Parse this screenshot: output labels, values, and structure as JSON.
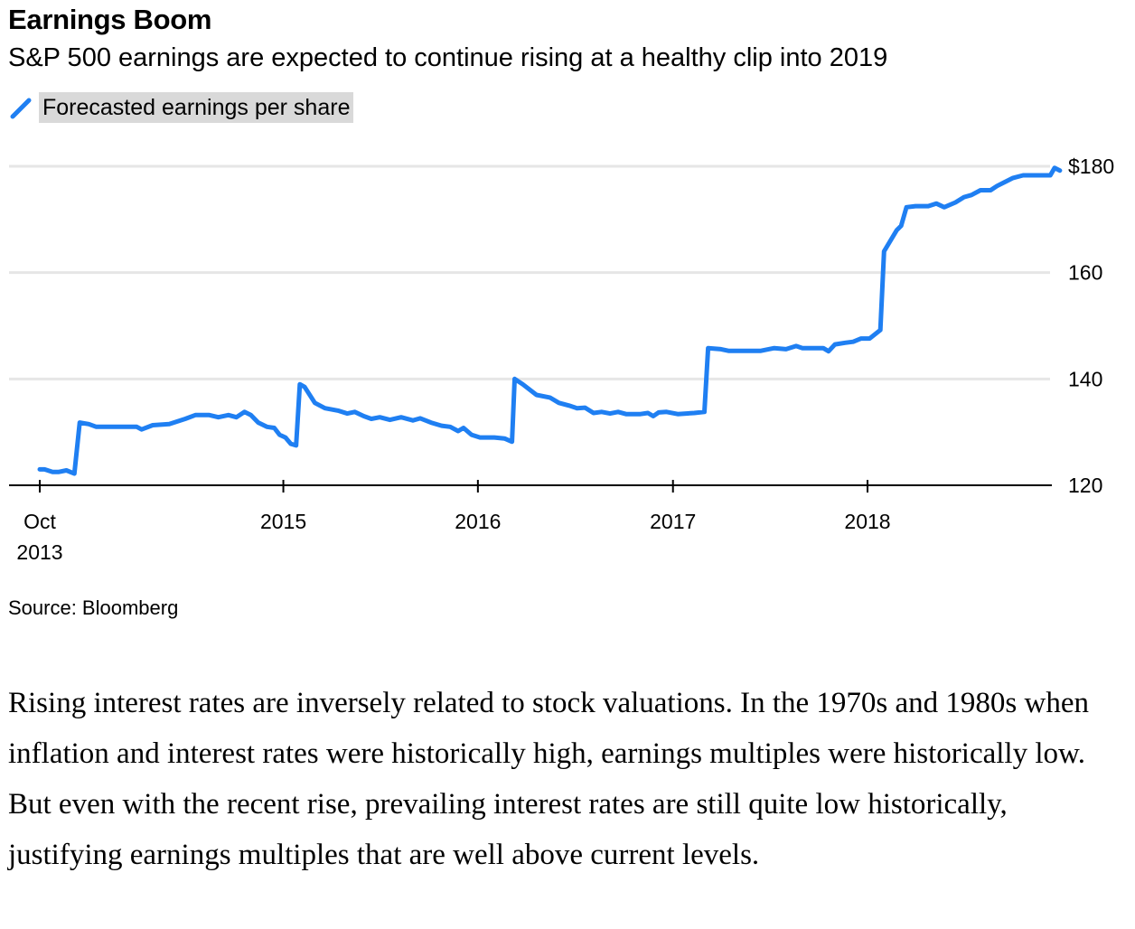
{
  "article": {
    "source": "Source: Bloomberg",
    "paragraph": "Rising interest rates are inversely related to stock valuations. In the 1970s and 1980s when inflation and interest rates were historically high, earnings multiples were historically low. But even with the recent rise, prevailing interest rates are still quite low historically, justifying earnings multiples that are well above current levels."
  },
  "colors": {
    "line": "#1f7ff2",
    "grid": "#e6e6e6",
    "legend_bg": "#d9d9d9"
  },
  "chart_data": {
    "type": "line",
    "title": "Earnings Boom",
    "subtitle": "S&P 500 earnings are expected to continue rising at a healthy clip into 2019",
    "legend_position": "top-left",
    "y_axis_position": "right",
    "grid": true,
    "ylim": [
      120,
      182
    ],
    "y_ticks": [
      {
        "value": 120,
        "label": "120"
      },
      {
        "value": 140,
        "label": "140"
      },
      {
        "value": 160,
        "label": "160"
      },
      {
        "value": 180,
        "label": "$180"
      }
    ],
    "x_ticks": [
      {
        "date": "2013-10-01",
        "label": [
          "Oct",
          "2013"
        ]
      },
      {
        "date": "2015-01-01",
        "label": [
          "2015"
        ]
      },
      {
        "date": "2016-01-01",
        "label": [
          "2016"
        ]
      },
      {
        "date": "2017-01-01",
        "label": [
          "2017"
        ]
      },
      {
        "date": "2018-01-01",
        "label": [
          "2018"
        ]
      }
    ],
    "xlim": [
      "2013-09-25",
      "2019-01-15"
    ],
    "series": [
      {
        "name": "Forecasted earnings per share",
        "points": [
          [
            "2013-10-01",
            123.0
          ],
          [
            "2013-10-10",
            123.0
          ],
          [
            "2013-10-25",
            122.5
          ],
          [
            "2013-11-05",
            122.5
          ],
          [
            "2013-11-20",
            122.8
          ],
          [
            "2013-12-05",
            122.2
          ],
          [
            "2013-12-15",
            131.8
          ],
          [
            "2014-01-01",
            131.5
          ],
          [
            "2014-01-15",
            131.0
          ],
          [
            "2014-02-01",
            131.0
          ],
          [
            "2014-03-01",
            131.0
          ],
          [
            "2014-04-01",
            131.0
          ],
          [
            "2014-04-10",
            130.5
          ],
          [
            "2014-05-01",
            131.3
          ],
          [
            "2014-06-01",
            131.5
          ],
          [
            "2014-07-01",
            132.5
          ],
          [
            "2014-07-20",
            133.2
          ],
          [
            "2014-08-15",
            133.2
          ],
          [
            "2014-09-01",
            132.8
          ],
          [
            "2014-09-20",
            133.2
          ],
          [
            "2014-10-05",
            132.8
          ],
          [
            "2014-10-20",
            133.8
          ],
          [
            "2014-11-01",
            133.2
          ],
          [
            "2014-11-15",
            131.8
          ],
          [
            "2014-12-01",
            131.0
          ],
          [
            "2014-12-15",
            130.8
          ],
          [
            "2014-12-25",
            129.5
          ],
          [
            "2015-01-05",
            129.0
          ],
          [
            "2015-01-15",
            127.8
          ],
          [
            "2015-01-25",
            127.5
          ],
          [
            "2015-02-01",
            139.0
          ],
          [
            "2015-02-10",
            138.5
          ],
          [
            "2015-03-01",
            135.5
          ],
          [
            "2015-03-20",
            134.5
          ],
          [
            "2015-04-15",
            134.0
          ],
          [
            "2015-05-01",
            133.5
          ],
          [
            "2015-05-15",
            133.8
          ],
          [
            "2015-06-01",
            133.0
          ],
          [
            "2015-06-15",
            132.5
          ],
          [
            "2015-07-01",
            132.8
          ],
          [
            "2015-07-20",
            132.3
          ],
          [
            "2015-08-10",
            132.8
          ],
          [
            "2015-09-01",
            132.2
          ],
          [
            "2015-09-15",
            132.6
          ],
          [
            "2015-10-05",
            131.8
          ],
          [
            "2015-10-25",
            131.2
          ],
          [
            "2015-11-10",
            131.0
          ],
          [
            "2015-11-25",
            130.2
          ],
          [
            "2015-12-05",
            130.8
          ],
          [
            "2015-12-20",
            129.5
          ],
          [
            "2016-01-05",
            129.0
          ],
          [
            "2016-02-01",
            129.0
          ],
          [
            "2016-02-20",
            128.8
          ],
          [
            "2016-03-05",
            128.2
          ],
          [
            "2016-03-10",
            140.0
          ],
          [
            "2016-03-25",
            139.0
          ],
          [
            "2016-04-20",
            137.0
          ],
          [
            "2016-05-15",
            136.5
          ],
          [
            "2016-06-01",
            135.5
          ],
          [
            "2016-06-20",
            135.0
          ],
          [
            "2016-07-05",
            134.5
          ],
          [
            "2016-07-20",
            134.6
          ],
          [
            "2016-08-05",
            133.6
          ],
          [
            "2016-08-20",
            133.8
          ],
          [
            "2016-09-05",
            133.5
          ],
          [
            "2016-09-20",
            133.8
          ],
          [
            "2016-10-05",
            133.4
          ],
          [
            "2016-11-01",
            133.4
          ],
          [
            "2016-11-15",
            133.6
          ],
          [
            "2016-11-25",
            133.0
          ],
          [
            "2016-12-05",
            133.7
          ],
          [
            "2016-12-20",
            133.8
          ],
          [
            "2017-01-10",
            133.4
          ],
          [
            "2017-02-10",
            133.6
          ],
          [
            "2017-03-01",
            133.8
          ],
          [
            "2017-03-08",
            145.8
          ],
          [
            "2017-04-01",
            145.6
          ],
          [
            "2017-04-15",
            145.3
          ],
          [
            "2017-05-15",
            145.3
          ],
          [
            "2017-06-15",
            145.3
          ],
          [
            "2017-07-10",
            145.8
          ],
          [
            "2017-08-01",
            145.6
          ],
          [
            "2017-08-20",
            146.2
          ],
          [
            "2017-09-01",
            145.8
          ],
          [
            "2017-09-20",
            145.8
          ],
          [
            "2017-10-10",
            145.8
          ],
          [
            "2017-10-20",
            145.2
          ],
          [
            "2017-11-01",
            146.5
          ],
          [
            "2017-11-20",
            146.8
          ],
          [
            "2017-12-05",
            147.0
          ],
          [
            "2017-12-20",
            147.6
          ],
          [
            "2018-01-05",
            147.6
          ],
          [
            "2018-01-25",
            149.2
          ],
          [
            "2018-02-01",
            164.0
          ],
          [
            "2018-02-25",
            168.0
          ],
          [
            "2018-03-05",
            168.8
          ],
          [
            "2018-03-15",
            172.3
          ],
          [
            "2018-04-01",
            172.5
          ],
          [
            "2018-04-25",
            172.5
          ],
          [
            "2018-05-10",
            173.0
          ],
          [
            "2018-05-25",
            172.3
          ],
          [
            "2018-06-15",
            173.2
          ],
          [
            "2018-07-01",
            174.2
          ],
          [
            "2018-07-15",
            174.6
          ],
          [
            "2018-08-01",
            175.5
          ],
          [
            "2018-08-20",
            175.5
          ],
          [
            "2018-09-01",
            176.3
          ],
          [
            "2018-09-15",
            177.0
          ],
          [
            "2018-10-01",
            177.8
          ],
          [
            "2018-10-20",
            178.3
          ],
          [
            "2018-11-15",
            178.3
          ],
          [
            "2018-12-10",
            178.3
          ],
          [
            "2018-12-18",
            179.7
          ],
          [
            "2018-12-28",
            179.2
          ]
        ]
      }
    ]
  }
}
